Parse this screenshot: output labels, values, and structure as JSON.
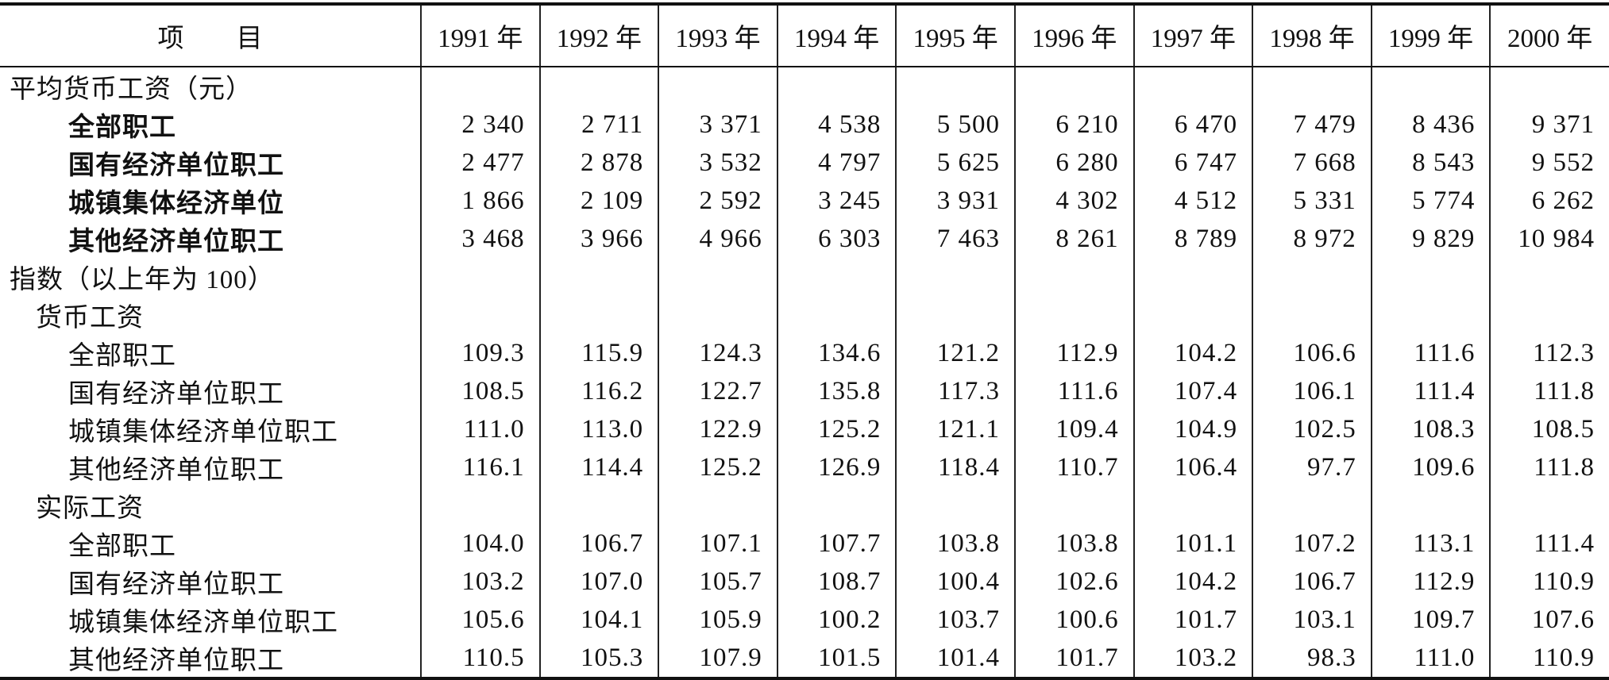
{
  "header": [
    "项　　目",
    "1991 年",
    "1992 年",
    "1993 年",
    "1994 年",
    "1995 年",
    "1996 年",
    "1997 年",
    "1998 年",
    "1999 年",
    "2000 年"
  ],
  "sections": [
    {
      "title": "平均货币工资（元）",
      "rows": [
        {
          "label": "全部职工",
          "values": [
            "2 340",
            "2 711",
            "3 371",
            "4 538",
            "5 500",
            "6 210",
            "6 470",
            "7 479",
            "8 436",
            "9 371"
          ]
        },
        {
          "label": "国有经济单位职工",
          "values": [
            "2 477",
            "2 878",
            "3 532",
            "4 797",
            "5 625",
            "6 280",
            "6 747",
            "7 668",
            "8 543",
            "9 552"
          ]
        },
        {
          "label": "城镇集体经济单位",
          "values": [
            "1 866",
            "2 109",
            "2 592",
            "3 245",
            "3 931",
            "4 302",
            "4 512",
            "5 331",
            "5 774",
            "6 262"
          ]
        },
        {
          "label": "其他经济单位职工",
          "values": [
            "3 468",
            "3 966",
            "4 966",
            "6 303",
            "7 463",
            "8 261",
            "8 789",
            "8 972",
            "9 829",
            "10 984"
          ]
        }
      ]
    },
    {
      "title": "指数（以上年为 100）",
      "groups": [
        {
          "title": "货币工资",
          "rows": [
            {
              "label": "全部职工",
              "values": [
                "109.3",
                "115.9",
                "124.3",
                "134.6",
                "121.2",
                "112.9",
                "104.2",
                "106.6",
                "111.6",
                "112.3"
              ]
            },
            {
              "label": "国有经济单位职工",
              "values": [
                "108.5",
                "116.2",
                "122.7",
                "135.8",
                "117.3",
                "111.6",
                "107.4",
                "106.1",
                "111.4",
                "111.8"
              ]
            },
            {
              "label": "城镇集体经济单位职工",
              "values": [
                "111.0",
                "113.0",
                "122.9",
                "125.2",
                "121.1",
                "109.4",
                "104.9",
                "102.5",
                "108.3",
                "108.5"
              ]
            },
            {
              "label": "其他经济单位职工",
              "values": [
                "116.1",
                "114.4",
                "125.2",
                "126.9",
                "118.4",
                "110.7",
                "106.4",
                "97.7",
                "109.6",
                "111.8"
              ]
            }
          ]
        },
        {
          "title": "实际工资",
          "rows": [
            {
              "label": "全部职工",
              "values": [
                "104.0",
                "106.7",
                "107.1",
                "107.7",
                "103.8",
                "103.8",
                "101.1",
                "107.2",
                "113.1",
                "111.4"
              ]
            },
            {
              "label": "国有经济单位职工",
              "values": [
                "103.2",
                "107.0",
                "105.7",
                "108.7",
                "100.4",
                "102.6",
                "104.2",
                "106.7",
                "112.9",
                "110.9"
              ]
            },
            {
              "label": "城镇集体经济单位职工",
              "values": [
                "105.6",
                "104.1",
                "105.9",
                "100.2",
                "103.7",
                "100.6",
                "101.7",
                "103.1",
                "109.7",
                "107.6"
              ]
            },
            {
              "label": "其他经济单位职工",
              "values": [
                "110.5",
                "105.3",
                "107.9",
                "101.5",
                "101.4",
                "101.7",
                "103.2",
                "98.3",
                "111.0",
                "110.9"
              ]
            }
          ]
        }
      ]
    }
  ]
}
